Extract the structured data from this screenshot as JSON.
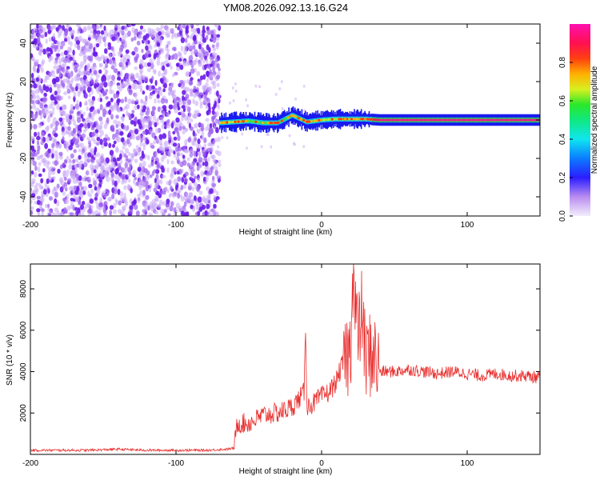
{
  "title": "YM08.2026.092.13.16.G24",
  "chart_data": [
    {
      "type": "heatmap",
      "xlabel": "Height of straight line (km)",
      "ylabel": "Frequency (Hz)",
      "xlim": [
        -200,
        150
      ],
      "ylim": [
        -50,
        50
      ],
      "xticks": [
        -200,
        -100,
        0,
        100
      ],
      "yticks": [
        -40,
        -20,
        0,
        20,
        40
      ],
      "colorbar": {
        "label": "Normalized spectral amplitude",
        "range": [
          0.0,
          1.0
        ],
        "ticks": [
          0.0,
          0.2,
          0.4,
          0.6,
          0.8
        ],
        "colormap": "rainbow: 0 white-lavender, 0.2 blue, 0.4 cyan, 0.55 green, 0.65 yellow, 0.8 orange, 1.0 magenta"
      },
      "noise_region": {
        "x": [
          -200,
          -70
        ],
        "amplitude_range": [
          0.0,
          0.3
        ]
      },
      "signal_track": [
        {
          "x": -70,
          "freq": -1.5,
          "amplitude": 0.7
        },
        {
          "x": -60,
          "freq": -1.0,
          "amplitude": 0.65
        },
        {
          "x": -50,
          "freq": -0.5,
          "amplitude": 0.6
        },
        {
          "x": -40,
          "freq": -1.5,
          "amplitude": 0.6
        },
        {
          "x": -30,
          "freq": -1.5,
          "amplitude": 0.6
        },
        {
          "x": -20,
          "freq": 2.5,
          "amplitude": 0.55
        },
        {
          "x": -10,
          "freq": -1.0,
          "amplitude": 0.6
        },
        {
          "x": 0,
          "freq": 0.0,
          "amplitude": 0.65
        },
        {
          "x": 10,
          "freq": 0.5,
          "amplitude": 0.65
        },
        {
          "x": 20,
          "freq": 0.5,
          "amplitude": 0.7
        },
        {
          "x": 30,
          "freq": 0.5,
          "amplitude": 0.75
        },
        {
          "x": 40,
          "freq": 0.0,
          "amplitude": 0.95
        },
        {
          "x": 60,
          "freq": 0.0,
          "amplitude": 0.95
        },
        {
          "x": 80,
          "freq": 0.0,
          "amplitude": 0.95
        },
        {
          "x": 100,
          "freq": 0.0,
          "amplitude": 0.95
        },
        {
          "x": 120,
          "freq": 0.0,
          "amplitude": 0.95
        },
        {
          "x": 150,
          "freq": 0.0,
          "amplitude": 0.95
        }
      ]
    },
    {
      "type": "line",
      "xlabel": "Height of straight line (km)",
      "ylabel": "SNR (10 * v/v)",
      "xlim": [
        -200,
        150
      ],
      "ylim": [
        0,
        9200
      ],
      "xticks": [
        -200,
        -100,
        0,
        100
      ],
      "yticks": [
        2000,
        4000,
        6000,
        8000
      ],
      "color": "#e8302f",
      "series": [
        {
          "x": [
            -200,
            -180,
            -160,
            -140,
            -120,
            -100,
            -80,
            -65,
            -60,
            -58,
            -50,
            -40,
            -30,
            -20,
            -12,
            -11,
            -10,
            -5,
            0,
            5,
            10,
            15,
            20,
            21,
            25,
            28,
            30,
            35,
            40,
            50,
            60,
            70,
            80,
            90,
            100,
            110,
            120,
            130,
            140,
            150
          ],
          "y": [
            200,
            200,
            200,
            250,
            200,
            200,
            200,
            250,
            300,
            1500,
            1500,
            1900,
            2000,
            2300,
            3000,
            6200,
            2300,
            2500,
            2800,
            3000,
            3500,
            4500,
            5000,
            9100,
            5500,
            7000,
            4500,
            5000,
            4000,
            4000,
            4100,
            4000,
            3900,
            4000,
            3900,
            3800,
            3900,
            3800,
            3800,
            3700
          ]
        }
      ]
    }
  ]
}
